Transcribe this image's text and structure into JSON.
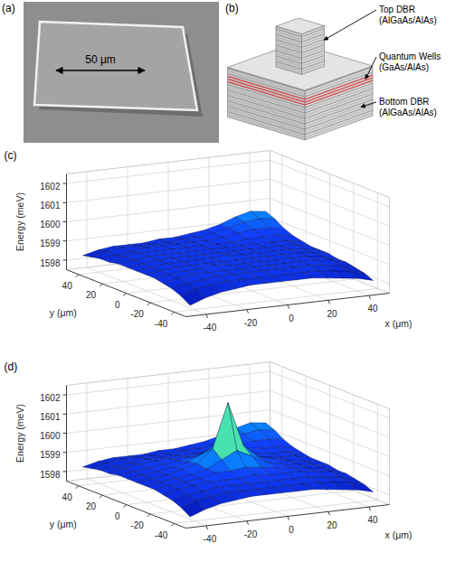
{
  "figure": {
    "panels": [
      {
        "label": "(a)",
        "type": "image",
        "scale_bar": "50 μm"
      },
      {
        "label": "(b)",
        "type": "diagram",
        "layers": [
          {
            "name": "Top DBR",
            "material": "(AlGaAs/AlAs)"
          },
          {
            "name": "Quantum Wells",
            "material": "(GaAs/AlAs)"
          },
          {
            "name": "Bottom DBR",
            "material": "(AlGaAs/AlAs)"
          }
        ]
      }
    ]
  },
  "chart_data": [
    {
      "type": "surface",
      "title": "(c)",
      "x_label": "x (μm)",
      "y_label": "y (μm)",
      "z_label": "Energy (meV)",
      "xlim": [
        -50,
        50
      ],
      "ylim": [
        -50,
        50
      ],
      "zlim": [
        1597.5,
        1602.5
      ],
      "xticks": [
        -40,
        -20,
        0,
        20,
        40
      ],
      "yticks": [
        -40,
        -20,
        0,
        20,
        40
      ],
      "zticks": [
        1598,
        1599,
        1600,
        1601,
        1602
      ],
      "grid": true,
      "x": [
        -45,
        -37.5,
        -30,
        -22.5,
        -15,
        -7.5,
        0,
        7.5,
        15,
        22.5,
        30,
        37.5,
        45
      ],
      "y": [
        -45,
        -37.5,
        -30,
        -22.5,
        -15,
        -7.5,
        0,
        7.5,
        15,
        22.5,
        30,
        37.5,
        45
      ],
      "values": [
        [
          1597.9,
          1598.2,
          1598.4,
          1598.5,
          1598.6,
          1598.6,
          1598.6,
          1598.6,
          1598.6,
          1598.5,
          1598.4,
          1598.3,
          1598.1
        ],
        [
          1598.2,
          1598.5,
          1598.6,
          1598.7,
          1598.7,
          1598.7,
          1598.7,
          1598.7,
          1598.7,
          1598.7,
          1598.6,
          1598.5,
          1598.3
        ],
        [
          1598.4,
          1598.6,
          1598.7,
          1598.8,
          1598.8,
          1598.8,
          1598.8,
          1598.8,
          1598.8,
          1598.8,
          1598.7,
          1598.6,
          1598.4
        ],
        [
          1598.5,
          1598.7,
          1598.8,
          1598.8,
          1598.8,
          1598.8,
          1598.8,
          1598.8,
          1598.8,
          1598.8,
          1598.8,
          1598.7,
          1598.5
        ],
        [
          1598.6,
          1598.7,
          1598.8,
          1598.8,
          1598.9,
          1598.8,
          1598.8,
          1598.8,
          1598.8,
          1598.8,
          1598.8,
          1598.7,
          1598.5
        ],
        [
          1598.6,
          1598.7,
          1598.8,
          1598.8,
          1598.8,
          1598.8,
          1598.8,
          1598.8,
          1598.8,
          1598.8,
          1598.8,
          1598.7,
          1598.6
        ],
        [
          1598.6,
          1598.7,
          1598.8,
          1598.8,
          1598.8,
          1598.8,
          1598.9,
          1598.8,
          1598.8,
          1598.8,
          1598.8,
          1598.7,
          1598.6
        ],
        [
          1598.6,
          1598.7,
          1598.8,
          1598.8,
          1598.8,
          1598.8,
          1598.8,
          1598.8,
          1598.8,
          1598.8,
          1598.8,
          1598.8,
          1598.6
        ],
        [
          1598.6,
          1598.7,
          1598.8,
          1598.8,
          1598.8,
          1598.8,
          1598.8,
          1598.8,
          1598.8,
          1598.8,
          1598.8,
          1598.8,
          1598.7
        ],
        [
          1598.5,
          1598.7,
          1598.8,
          1598.8,
          1598.8,
          1598.8,
          1598.8,
          1598.8,
          1598.8,
          1598.9,
          1598.9,
          1598.9,
          1598.8
        ],
        [
          1598.5,
          1598.6,
          1598.7,
          1598.8,
          1598.8,
          1598.8,
          1598.8,
          1598.8,
          1598.9,
          1599.0,
          1599.1,
          1599.1,
          1599.0
        ],
        [
          1598.4,
          1598.6,
          1598.7,
          1598.7,
          1598.7,
          1598.7,
          1598.8,
          1598.8,
          1598.9,
          1599.1,
          1599.3,
          1599.4,
          1599.3
        ],
        [
          1598.3,
          1598.5,
          1598.6,
          1598.6,
          1598.6,
          1598.7,
          1598.7,
          1598.8,
          1598.9,
          1599.1,
          1599.4,
          1599.6,
          1599.5
        ]
      ]
    },
    {
      "type": "surface",
      "title": "(d)",
      "x_label": "x (μm)",
      "y_label": "y (μm)",
      "z_label": "Energy (meV)",
      "xlim": [
        -50,
        50
      ],
      "ylim": [
        -50,
        50
      ],
      "zlim": [
        1597.5,
        1602.5
      ],
      "xticks": [
        -40,
        -20,
        0,
        20,
        40
      ],
      "yticks": [
        -40,
        -20,
        0,
        20,
        40
      ],
      "zticks": [
        1598,
        1599,
        1600,
        1601,
        1602
      ],
      "grid": true,
      "x": [
        -45,
        -37.5,
        -30,
        -22.5,
        -15,
        -7.5,
        0,
        7.5,
        15,
        22.5,
        30,
        37.5,
        45
      ],
      "y": [
        -45,
        -37.5,
        -30,
        -22.5,
        -15,
        -7.5,
        0,
        7.5,
        15,
        22.5,
        30,
        37.5,
        45
      ],
      "values": [
        [
          1597.9,
          1598.2,
          1598.4,
          1598.5,
          1598.6,
          1598.6,
          1598.6,
          1598.6,
          1598.6,
          1598.5,
          1598.4,
          1598.3,
          1598.1
        ],
        [
          1598.2,
          1598.5,
          1598.6,
          1598.7,
          1598.7,
          1598.7,
          1598.7,
          1598.7,
          1598.7,
          1598.7,
          1598.6,
          1598.5,
          1598.3
        ],
        [
          1598.4,
          1598.6,
          1598.7,
          1598.8,
          1598.8,
          1598.8,
          1598.8,
          1598.8,
          1598.8,
          1598.8,
          1598.7,
          1598.6,
          1598.4
        ],
        [
          1598.5,
          1598.7,
          1598.8,
          1598.9,
          1598.9,
          1598.9,
          1599.0,
          1598.9,
          1598.9,
          1598.9,
          1598.8,
          1598.7,
          1598.5
        ],
        [
          1598.6,
          1598.7,
          1598.8,
          1598.9,
          1599.1,
          1599.1,
          1599.2,
          1599.1,
          1599.0,
          1598.9,
          1598.8,
          1598.7,
          1598.5
        ],
        [
          1598.6,
          1598.7,
          1598.8,
          1598.9,
          1599.1,
          1599.5,
          1599.9,
          1599.5,
          1599.1,
          1598.9,
          1598.8,
          1598.7,
          1598.6
        ],
        [
          1598.6,
          1598.7,
          1598.8,
          1599.0,
          1599.2,
          1599.9,
          1602.2,
          1599.9,
          1599.2,
          1599.0,
          1598.8,
          1598.7,
          1598.6
        ],
        [
          1598.6,
          1598.7,
          1598.8,
          1598.9,
          1599.1,
          1599.5,
          1599.9,
          1599.5,
          1599.1,
          1598.9,
          1598.8,
          1598.8,
          1598.6
        ],
        [
          1598.6,
          1598.7,
          1598.8,
          1598.9,
          1599.0,
          1599.1,
          1599.2,
          1599.1,
          1599.0,
          1598.9,
          1598.8,
          1598.8,
          1598.7
        ],
        [
          1598.5,
          1598.7,
          1598.8,
          1598.9,
          1598.9,
          1598.9,
          1599.0,
          1598.9,
          1598.9,
          1599.0,
          1598.9,
          1598.9,
          1598.8
        ],
        [
          1598.5,
          1598.6,
          1598.7,
          1598.8,
          1598.8,
          1598.8,
          1598.8,
          1598.8,
          1598.9,
          1599.0,
          1599.1,
          1599.1,
          1599.0
        ],
        [
          1598.4,
          1598.6,
          1598.7,
          1598.7,
          1598.7,
          1598.7,
          1598.8,
          1598.8,
          1598.9,
          1599.1,
          1599.3,
          1599.4,
          1599.3
        ],
        [
          1598.3,
          1598.5,
          1598.6,
          1598.6,
          1598.6,
          1598.7,
          1598.7,
          1598.8,
          1598.9,
          1599.1,
          1599.4,
          1599.6,
          1599.5
        ]
      ]
    }
  ]
}
